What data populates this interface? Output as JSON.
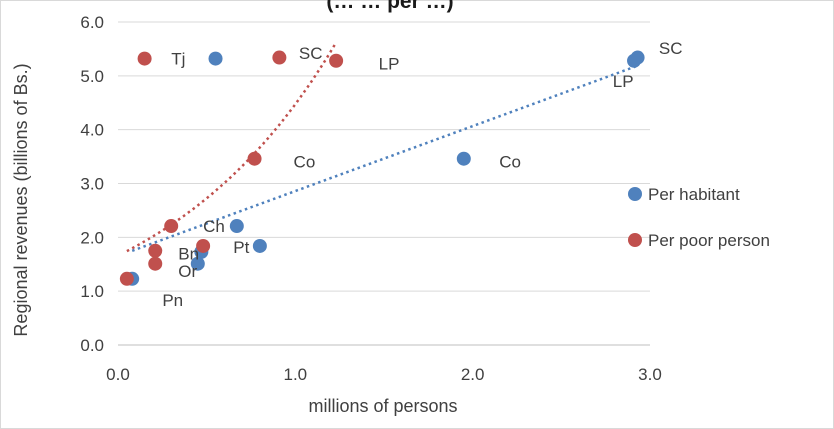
{
  "chart_data": {
    "type": "scatter",
    "title": "(… … per …)",
    "xlabel": "millions of persons",
    "ylabel": "Regional revenues (billions of Bs.)",
    "xlim": [
      0,
      3
    ],
    "ylim": [
      0,
      6
    ],
    "x_ticks": [
      "0.0",
      "1.0",
      "2.0",
      "3.0"
    ],
    "y_ticks": [
      "0.0",
      "1.0",
      "2.0",
      "3.0",
      "4.0",
      "5.0",
      "6.0"
    ],
    "grid": "horizontal",
    "legend": "right",
    "series": [
      {
        "name": "Per habitant",
        "color": "#4f81bd",
        "trendline": "linear",
        "points": [
          {
            "x": 0.55,
            "y": 5.32
          },
          {
            "x": 2.93,
            "y": 5.34
          },
          {
            "x": 2.91,
            "y": 5.28
          },
          {
            "x": 1.95,
            "y": 3.46
          },
          {
            "x": 0.67,
            "y": 2.21
          },
          {
            "x": 0.8,
            "y": 1.84
          },
          {
            "x": 0.47,
            "y": 1.73
          },
          {
            "x": 0.45,
            "y": 1.51
          },
          {
            "x": 0.08,
            "y": 1.23
          }
        ]
      },
      {
        "name": "Per poor person",
        "color": "#c0504d",
        "trendline": "exponential",
        "points": [
          {
            "x": 0.15,
            "y": 5.32
          },
          {
            "x": 0.91,
            "y": 5.34
          },
          {
            "x": 1.23,
            "y": 5.28
          },
          {
            "x": 0.77,
            "y": 3.46
          },
          {
            "x": 0.3,
            "y": 2.21
          },
          {
            "x": 0.48,
            "y": 1.84
          },
          {
            "x": 0.21,
            "y": 1.75
          },
          {
            "x": 0.21,
            "y": 1.51
          },
          {
            "x": 0.05,
            "y": 1.23
          }
        ]
      }
    ],
    "annotations": [
      {
        "text": "Tj",
        "x": 0.3,
        "y": 5.32
      },
      {
        "text": "SC",
        "x": 1.02,
        "y": 5.42
      },
      {
        "text": "LP",
        "x": 1.47,
        "y": 5.23
      },
      {
        "text": "SC",
        "x": 3.05,
        "y": 5.52
      },
      {
        "text": "LP",
        "x": 2.79,
        "y": 4.9
      },
      {
        "text": "Co",
        "x": 0.99,
        "y": 3.41
      },
      {
        "text": "Co",
        "x": 2.15,
        "y": 3.41
      },
      {
        "text": "Ch",
        "x": 0.48,
        "y": 2.21
      },
      {
        "text": "Bn",
        "x": 0.34,
        "y": 1.7
      },
      {
        "text": "Pt",
        "x": 0.65,
        "y": 1.82
      },
      {
        "text": "Or",
        "x": 0.34,
        "y": 1.37
      },
      {
        "text": "Pn",
        "x": 0.25,
        "y": 0.84
      }
    ]
  }
}
